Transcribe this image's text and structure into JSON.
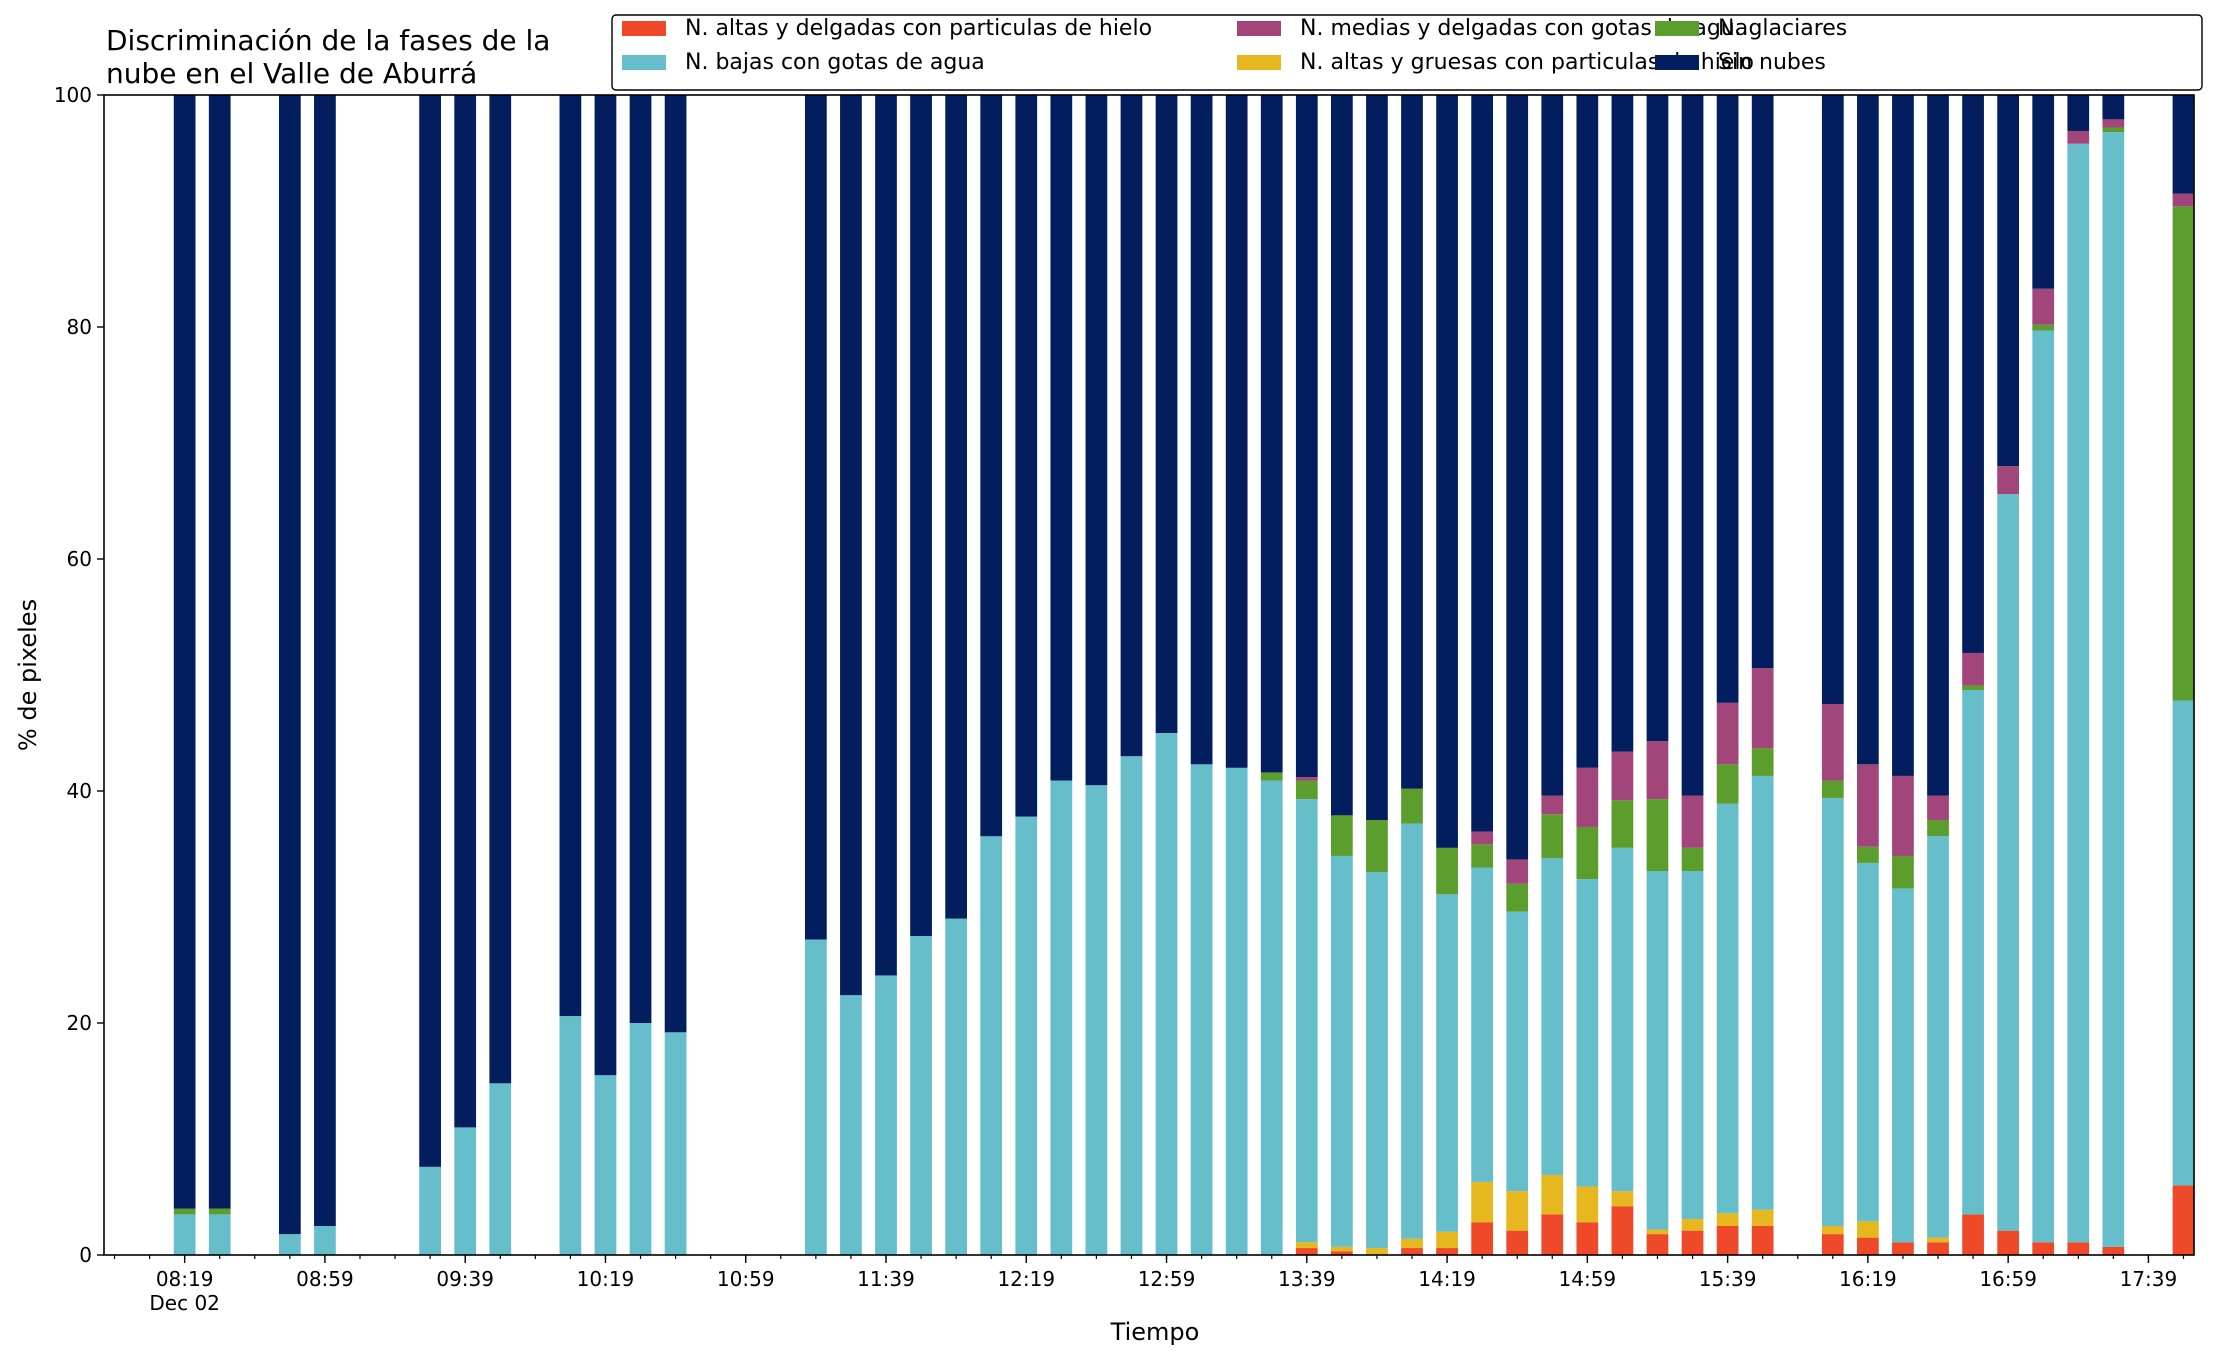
{
  "chart_data": {
    "type": "bar",
    "stacked": true,
    "title_lines": [
      "Discriminación de la fases de la",
      "nube en el Valle de Aburrá"
    ],
    "xlabel": "Tiempo",
    "ylabel": "% de pixeles",
    "ylim": [
      0,
      100
    ],
    "yticks": [
      0,
      20,
      40,
      60,
      80,
      100
    ],
    "x_domain_minutes": [
      476,
      1072
    ],
    "x_unit": "minutes since 00:00 (Dec 02)",
    "x_major_ticks": [
      {
        "t": 499,
        "label": "08:19",
        "sublabel": "Dec 02"
      },
      {
        "t": 539,
        "label": "08:59"
      },
      {
        "t": 579,
        "label": "09:39"
      },
      {
        "t": 619,
        "label": "10:19"
      },
      {
        "t": 659,
        "label": "10:59"
      },
      {
        "t": 699,
        "label": "11:39"
      },
      {
        "t": 739,
        "label": "12:19"
      },
      {
        "t": 779,
        "label": "12:59"
      },
      {
        "t": 819,
        "label": "13:39"
      },
      {
        "t": 859,
        "label": "14:19"
      },
      {
        "t": 899,
        "label": "14:59"
      },
      {
        "t": 939,
        "label": "15:39"
      },
      {
        "t": 979,
        "label": "16:19"
      },
      {
        "t": 1019,
        "label": "16:59"
      },
      {
        "t": 1059,
        "label": "17:39"
      }
    ],
    "x_minor_tick_step_minutes": 10,
    "legend": {
      "placement": "top-right",
      "columns": 3
    },
    "series": [
      {
        "name": "N. altas y delgadas con particulas de hielo",
        "color": "#EE4A2A"
      },
      {
        "name": "N. altas y gruesas con particulas de hielo",
        "color": "#E6B71E"
      },
      {
        "name": "N. bajas con gotas de agua",
        "color": "#67BECB"
      },
      {
        "name": "N. glaciares",
        "color": "#5C9E2E"
      },
      {
        "name": "N. medias y delgadas con gotas de agua",
        "color": "#A2457A"
      },
      {
        "name": "Sin nubes",
        "color": "#021E5E"
      }
    ],
    "legend_order": [
      0,
      2,
      4,
      1,
      3,
      5
    ],
    "bars": [
      {
        "t": 499,
        "values": [
          0,
          0,
          3.5,
          0.5,
          0,
          96
        ]
      },
      {
        "t": 509,
        "values": [
          0,
          0,
          3.5,
          0.5,
          0,
          96
        ]
      },
      {
        "t": 529,
        "values": [
          0,
          0,
          1.8,
          0,
          0,
          98.2
        ]
      },
      {
        "t": 539,
        "values": [
          0,
          0,
          2.5,
          0,
          0,
          97.5
        ]
      },
      {
        "t": 569,
        "values": [
          0,
          0,
          7.6,
          0,
          0,
          92.4
        ]
      },
      {
        "t": 579,
        "values": [
          0,
          0,
          11,
          0,
          0,
          89
        ]
      },
      {
        "t": 589,
        "values": [
          0,
          0,
          14.8,
          0,
          0,
          85.2
        ]
      },
      {
        "t": 609,
        "values": [
          0,
          0,
          20.6,
          0,
          0,
          79.4
        ]
      },
      {
        "t": 619,
        "values": [
          0,
          0,
          15.5,
          0,
          0,
          84.5
        ]
      },
      {
        "t": 629,
        "values": [
          0,
          0,
          20,
          0,
          0,
          80
        ]
      },
      {
        "t": 639,
        "values": [
          0,
          0,
          19.2,
          0,
          0,
          80.8
        ]
      },
      {
        "t": 679,
        "values": [
          0,
          0,
          27.2,
          0,
          0,
          72.8
        ]
      },
      {
        "t": 689,
        "values": [
          0,
          0,
          22.4,
          0,
          0,
          77.6
        ]
      },
      {
        "t": 699,
        "values": [
          0,
          0,
          24.1,
          0,
          0,
          75.9
        ]
      },
      {
        "t": 709,
        "values": [
          0,
          0,
          27.5,
          0,
          0,
          72.5
        ]
      },
      {
        "t": 719,
        "values": [
          0,
          0,
          29,
          0,
          0,
          71
        ]
      },
      {
        "t": 729,
        "values": [
          0,
          0,
          36.1,
          0,
          0,
          63.9
        ]
      },
      {
        "t": 739,
        "values": [
          0,
          0,
          37.8,
          0,
          0,
          62.2
        ]
      },
      {
        "t": 749,
        "values": [
          0,
          0,
          40.9,
          0,
          0,
          59.1
        ]
      },
      {
        "t": 759,
        "values": [
          0,
          0,
          40.5,
          0,
          0,
          59.5
        ]
      },
      {
        "t": 769,
        "values": [
          0,
          0,
          43,
          0,
          0,
          57
        ]
      },
      {
        "t": 779,
        "values": [
          0,
          0,
          45,
          0,
          0,
          55
        ]
      },
      {
        "t": 789,
        "values": [
          0,
          0,
          42.3,
          0,
          0,
          57.7
        ]
      },
      {
        "t": 799,
        "values": [
          0,
          0,
          42,
          0,
          0,
          58
        ]
      },
      {
        "t": 809,
        "values": [
          0,
          0,
          40.9,
          0.7,
          0,
          58.4
        ]
      },
      {
        "t": 819,
        "values": [
          0.6,
          0.5,
          38.2,
          1.6,
          0.3,
          58.8
        ]
      },
      {
        "t": 829,
        "values": [
          0.3,
          0.4,
          33.7,
          3.5,
          0,
          62.1
        ]
      },
      {
        "t": 839,
        "values": [
          0,
          0.6,
          32.4,
          4.5,
          0,
          62.5
        ]
      },
      {
        "t": 849,
        "values": [
          0.6,
          0.8,
          35.8,
          3,
          0,
          59.8
        ]
      },
      {
        "t": 859,
        "values": [
          0.6,
          1.4,
          29.1,
          4,
          0,
          64.9
        ]
      },
      {
        "t": 869,
        "values": [
          2.8,
          3.5,
          27.1,
          2,
          1.1,
          63.5
        ]
      },
      {
        "t": 879,
        "values": [
          2.1,
          3.4,
          24.1,
          2.4,
          2.1,
          65.9
        ]
      },
      {
        "t": 889,
        "values": [
          3.5,
          3.4,
          27.3,
          3.8,
          1.6,
          60.4
        ]
      },
      {
        "t": 899,
        "values": [
          2.8,
          3.1,
          26.5,
          4.5,
          5.1,
          58
        ]
      },
      {
        "t": 909,
        "values": [
          4.2,
          1.3,
          29.6,
          4.1,
          4.2,
          56.6
        ]
      },
      {
        "t": 919,
        "values": [
          1.8,
          0.4,
          30.9,
          6.2,
          5,
          55.7
        ]
      },
      {
        "t": 929,
        "values": [
          2.1,
          1,
          30,
          2,
          4.5,
          60.4
        ]
      },
      {
        "t": 939,
        "values": [
          2.5,
          1.1,
          35.3,
          3.4,
          5.3,
          52.4
        ]
      },
      {
        "t": 949,
        "values": [
          2.5,
          1.4,
          37.4,
          2.4,
          6.9,
          49.4
        ]
      },
      {
        "t": 969,
        "values": [
          1.8,
          0.7,
          36.9,
          1.5,
          6.6,
          52.5
        ]
      },
      {
        "t": 979,
        "values": [
          1.5,
          1.4,
          30.9,
          1.4,
          7.1,
          57.7
        ]
      },
      {
        "t": 989,
        "values": [
          1.1,
          0,
          30.5,
          2.8,
          6.9,
          58.7
        ]
      },
      {
        "t": 999,
        "values": [
          1.1,
          0.4,
          34.6,
          1.4,
          2.1,
          60.4
        ]
      },
      {
        "t": 1009,
        "values": [
          3.5,
          0,
          45.2,
          0.4,
          2.8,
          48.1
        ]
      },
      {
        "t": 1019,
        "values": [
          2.1,
          0,
          63.5,
          0,
          2.4,
          32
        ]
      },
      {
        "t": 1029,
        "values": [
          1.1,
          0,
          78.6,
          0.5,
          3.1,
          16.7
        ]
      },
      {
        "t": 1039,
        "values": [
          1.1,
          0,
          94.7,
          0,
          1.1,
          3.1
        ]
      },
      {
        "t": 1049,
        "values": [
          0.7,
          0,
          96.1,
          0.4,
          0.7,
          2.1
        ]
      },
      {
        "t": 1069,
        "values": [
          6,
          0,
          41.8,
          42.6,
          1.1,
          8.5
        ]
      }
    ]
  }
}
